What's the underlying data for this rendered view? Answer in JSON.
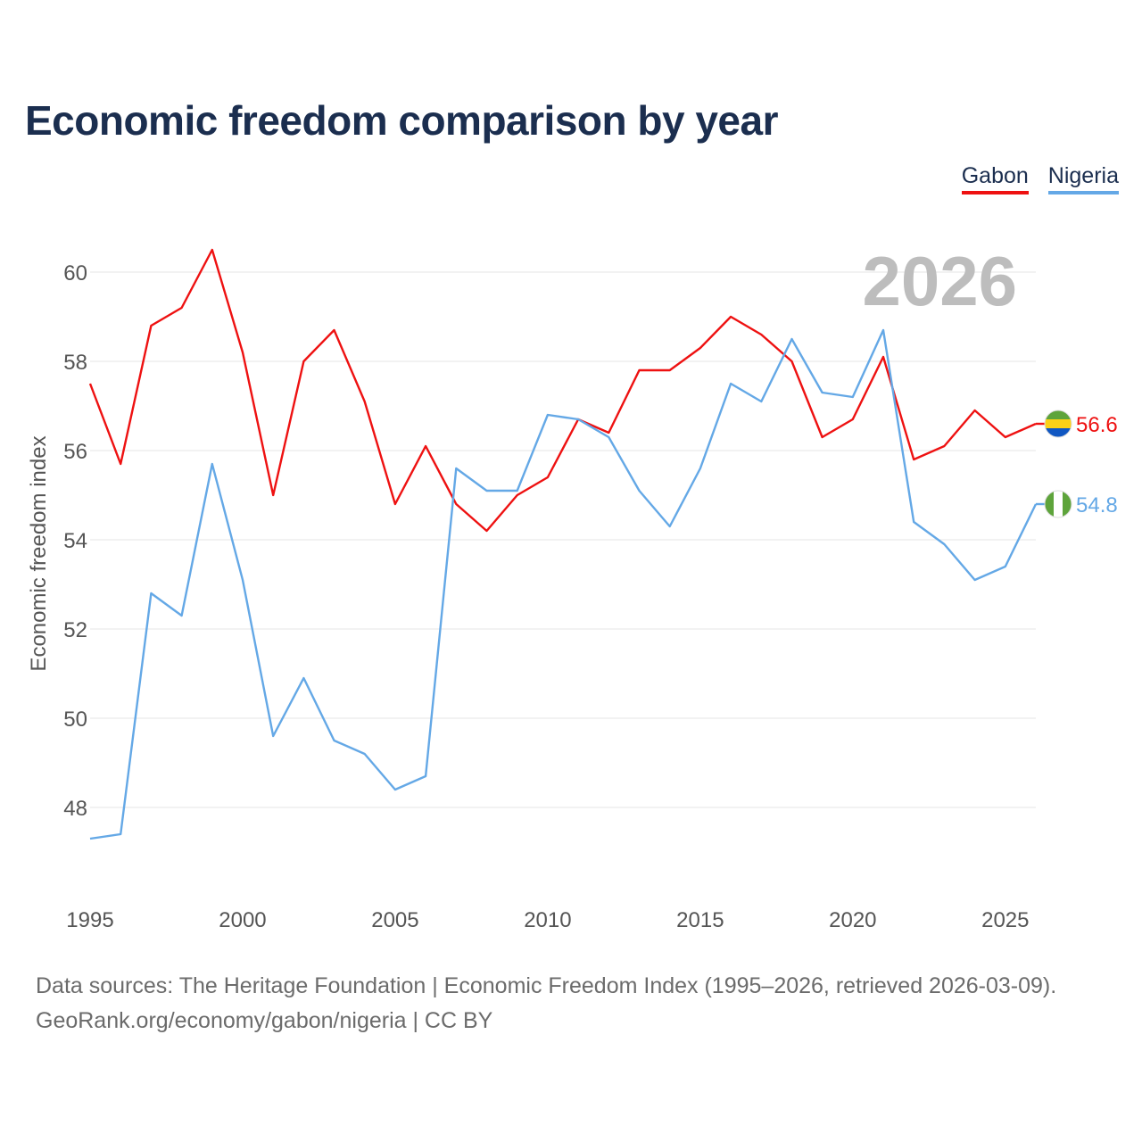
{
  "title": "Economic freedom comparison by year",
  "legend": [
    {
      "label": "Gabon",
      "color": "#ee1111"
    },
    {
      "label": "Nigeria",
      "color": "#64a8e6"
    }
  ],
  "current_year": "2026",
  "source_line1": "Data sources: The Heritage Foundation | Economic Freedom Index (1995–2026, retrieved 2026-03-09).",
  "source_line2": "GeoRank.org/economy/gabon/nigeria | CC BY",
  "chart_data": {
    "type": "line",
    "title": "Economic freedom comparison by year",
    "xlabel": "",
    "ylabel": "Economic freedom index",
    "x": [
      1995,
      1996,
      1997,
      1998,
      1999,
      2000,
      2001,
      2002,
      2003,
      2004,
      2005,
      2006,
      2007,
      2008,
      2009,
      2010,
      2011,
      2012,
      2013,
      2014,
      2015,
      2016,
      2017,
      2018,
      2019,
      2020,
      2021,
      2022,
      2023,
      2024,
      2025,
      2026
    ],
    "xlim": [
      1995,
      2026
    ],
    "ylim": [
      46.5,
      60.8
    ],
    "xticks": [
      1995,
      2000,
      2005,
      2010,
      2015,
      2020,
      2025
    ],
    "yticks": [
      48,
      50,
      52,
      54,
      56,
      58,
      60
    ],
    "grid": true,
    "series": [
      {
        "name": "Gabon",
        "color": "#ee1111",
        "end_label": "56.6",
        "flag": "gabon-flag",
        "values": [
          57.5,
          55.7,
          58.8,
          59.2,
          60.5,
          58.2,
          55.0,
          58.0,
          58.7,
          57.1,
          54.8,
          56.1,
          54.8,
          54.2,
          55.0,
          55.4,
          56.7,
          56.4,
          57.8,
          57.8,
          58.3,
          59.0,
          58.6,
          58.0,
          56.3,
          56.7,
          58.1,
          55.8,
          56.1,
          56.9,
          56.3,
          56.6
        ]
      },
      {
        "name": "Nigeria",
        "color": "#64a8e6",
        "end_label": "54.8",
        "flag": "nigeria-flag",
        "values": [
          47.3,
          47.4,
          52.8,
          52.3,
          55.7,
          53.1,
          49.6,
          50.9,
          49.5,
          49.2,
          48.4,
          48.7,
          55.6,
          55.1,
          55.1,
          56.8,
          56.7,
          56.3,
          55.1,
          54.3,
          55.6,
          57.5,
          57.1,
          58.5,
          57.3,
          57.2,
          58.7,
          54.4,
          53.9,
          53.1,
          53.4,
          54.8
        ]
      }
    ]
  }
}
